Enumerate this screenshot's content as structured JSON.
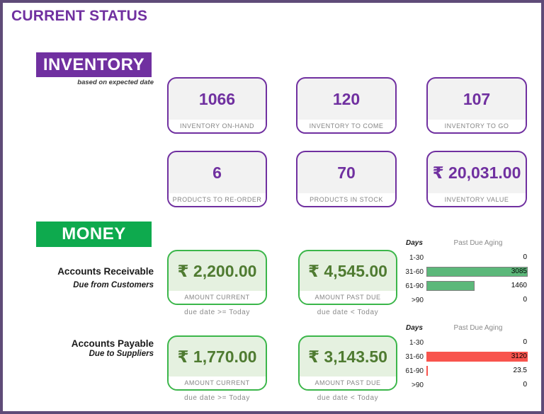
{
  "header": {
    "title": "CURRENT STATUS"
  },
  "colors": {
    "accent_purple": "#7030A0",
    "frame_purple": "#5f4b78",
    "banner_green": "#0eaa4e",
    "money_border_green": "#3bb64a",
    "money_value_green": "#4f7b31",
    "bar_green": "#5cb87a",
    "bar_red": "#f8544d",
    "label_gray": "#858585"
  },
  "inventory": {
    "section_label": "INVENTORY",
    "subnote": "based on expected date",
    "cards": [
      {
        "value": "1066",
        "label": "INVENTORY ON-HAND"
      },
      {
        "value": "120",
        "label": "INVENTORY TO COME"
      },
      {
        "value": "107",
        "label": "INVENTORY TO GO"
      },
      {
        "value": "6",
        "label": "PRODUCTS TO RE-ORDER"
      },
      {
        "value": "70",
        "label": "PRODUCTS IN STOCK"
      },
      {
        "value": "₹ 20,031.00",
        "label": "INVENTORY VALUE"
      }
    ]
  },
  "money": {
    "section_label": "MONEY",
    "rows": [
      {
        "title": "Accounts Receivable",
        "subtitle": "Due from Customers",
        "cards": [
          {
            "value": "₹ 2,200.00",
            "label": "AMOUNT CURRENT",
            "caption": "due date >= Today"
          },
          {
            "value": "₹ 4,545.00",
            "label": "AMOUNT PAST DUE",
            "caption": "due date < Today"
          }
        ]
      },
      {
        "title": "Accounts Payable",
        "subtitle": "Due to Suppliers",
        "cards": [
          {
            "value": "₹ 1,770.00",
            "label": "AMOUNT CURRENT",
            "caption": "due date >= Today"
          },
          {
            "value": "₹ 3,143.50",
            "label": "AMOUNT PAST DUE",
            "caption": "due date < Today"
          }
        ]
      }
    ]
  },
  "chart_data": [
    {
      "type": "bar",
      "orientation": "horizontal",
      "title": "Past Due Aging",
      "axis_label": "Days",
      "categories": [
        "1-30",
        "31-60",
        "61-90",
        ">90"
      ],
      "values": [
        0,
        3085,
        1460,
        0
      ],
      "value_labels": [
        "0",
        "3085",
        "1460",
        "0"
      ],
      "bar_color": "#5cb87a",
      "bar_border": "#7f7f7f",
      "xlim": [
        0,
        3085
      ],
      "grid": false,
      "legend": false
    },
    {
      "type": "bar",
      "orientation": "horizontal",
      "title": "Past Due Aging",
      "axis_label": "Days",
      "categories": [
        "1-30",
        "31-60",
        "61-90",
        ">90"
      ],
      "values": [
        0,
        3120,
        23.5,
        0
      ],
      "value_labels": [
        "0",
        "3120",
        "23.5",
        "0"
      ],
      "bar_color": "#f8544d",
      "bar_border": "#f8544d",
      "xlim": [
        0,
        3120
      ],
      "grid": false,
      "legend": false
    }
  ]
}
